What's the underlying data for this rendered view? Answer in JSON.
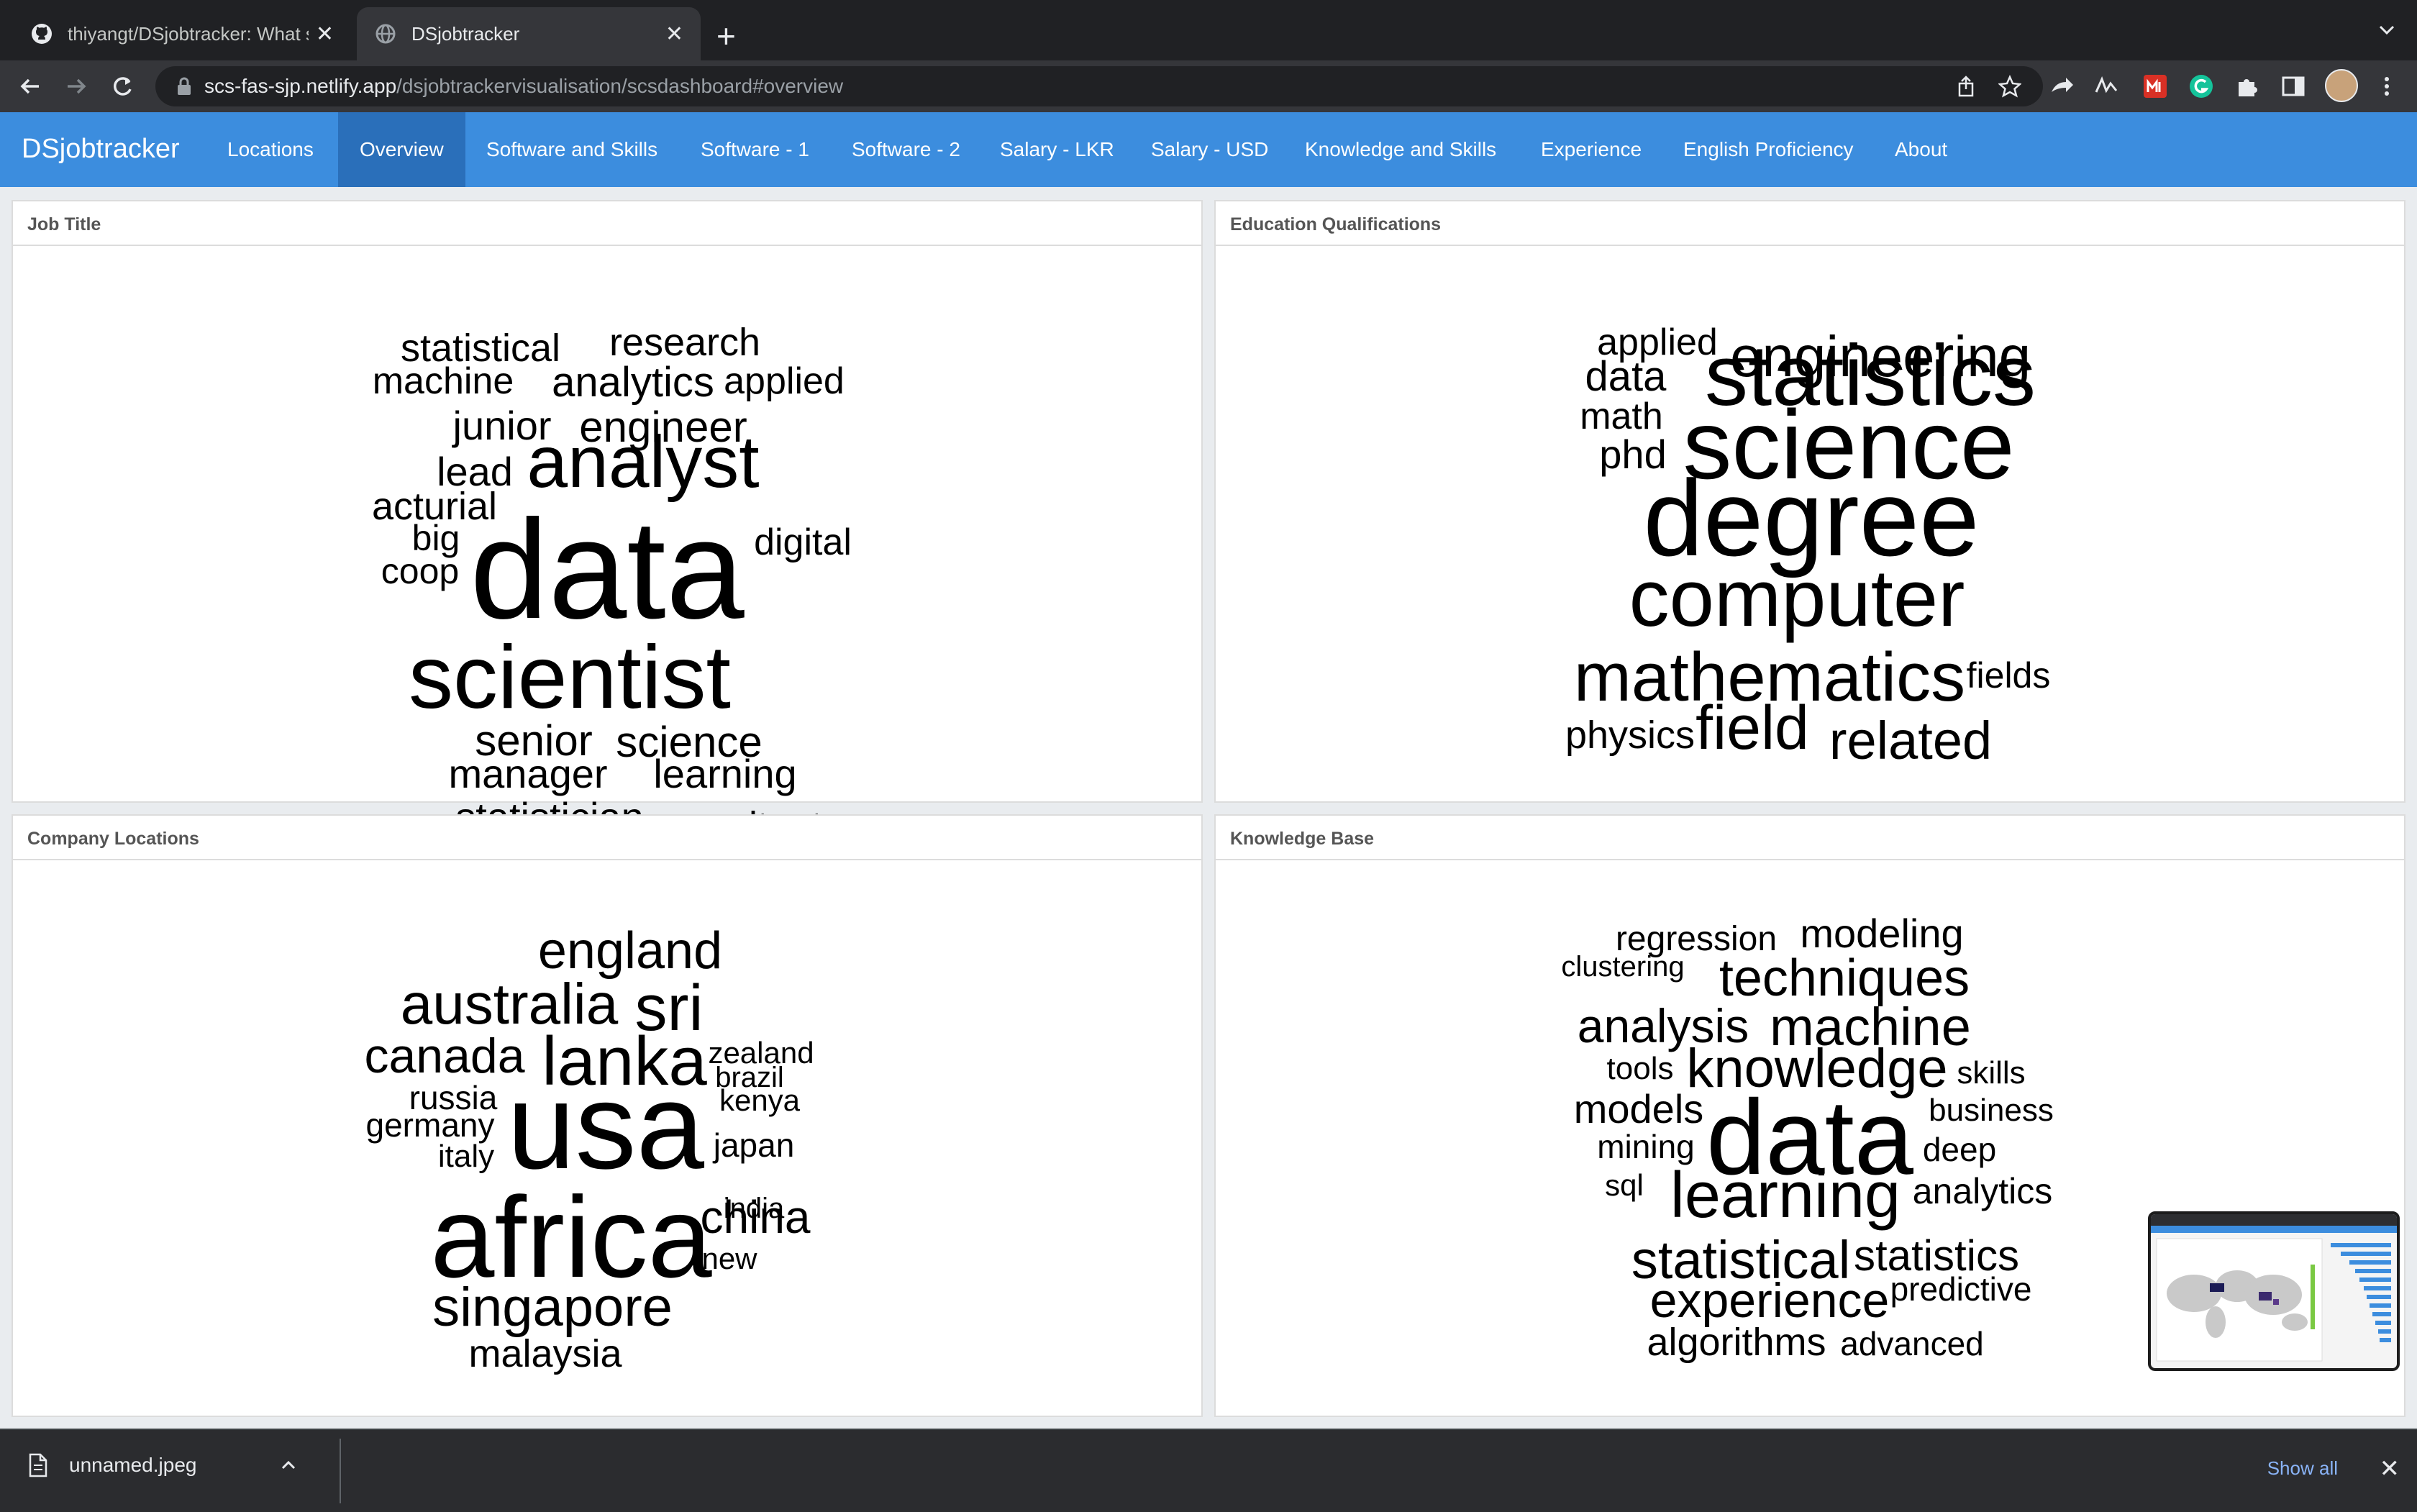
{
  "browser": {
    "tabs": [
      {
        "title": "thiyangt/DSjobtracker: What sk",
        "icon": "github-icon",
        "active": false
      },
      {
        "title": "DSjobtracker",
        "icon": "globe-icon",
        "active": true
      }
    ],
    "url_host": "scs-fas-sjp.netlify.app",
    "url_path": "/dsjobtrackervisualisation/scsdashboard#overview"
  },
  "app": {
    "brand": "DSjobtracker",
    "nav": [
      {
        "label": "Locations",
        "active": false
      },
      {
        "label": "Overview",
        "active": true
      },
      {
        "label": "Software and Skills",
        "active": false
      },
      {
        "label": "Software - 1",
        "active": false
      },
      {
        "label": "Software - 2",
        "active": false
      },
      {
        "label": "Salary - LKR",
        "active": false
      },
      {
        "label": "Salary - USD",
        "active": false
      },
      {
        "label": "Knowledge and Skills",
        "active": false
      },
      {
        "label": "Experience",
        "active": false
      },
      {
        "label": "English Proficiency",
        "active": false
      },
      {
        "label": "About",
        "active": false
      }
    ]
  },
  "panels": {
    "job_title": "Job Title",
    "education": "Education Qualifications",
    "company_locations": "Company Locations",
    "knowledge_base": "Knowledge Base"
  },
  "clouds": {
    "job_title": [
      "statistical",
      "research",
      "machine",
      "analytics",
      "applied",
      "junior",
      "engineer",
      "lead",
      "analyst",
      "acturial",
      "big",
      "digital",
      "coop",
      "data",
      "scientist",
      "senior",
      "science",
      "manager",
      "learning",
      "statistician",
      "consultant"
    ],
    "education": [
      "applied",
      "engineering",
      "data",
      "statistics",
      "math",
      "phd",
      "science",
      "degree",
      "computer",
      "mathematics",
      "fields",
      "physics",
      "field",
      "related"
    ],
    "company_locations": [
      "england",
      "australia",
      "sri",
      "canada",
      "lanka",
      "zealand",
      "brazil",
      "russia",
      "kenya",
      "germany",
      "usa",
      "italy",
      "japan",
      "africa",
      "india",
      "china",
      "new",
      "singapore",
      "malaysia"
    ],
    "knowledge_base": [
      "regression",
      "modeling",
      "clustering",
      "techniques",
      "analysis",
      "machine",
      "tools",
      "knowledge",
      "skills",
      "models",
      "data",
      "business",
      "mining",
      "deep",
      "sql",
      "learning",
      "analytics",
      "statistical",
      "statistics",
      "predictive",
      "experience",
      "algorithms",
      "advanced"
    ]
  },
  "download": {
    "file": "unnamed.jpeg",
    "show_all": "Show all"
  },
  "colors": {
    "navbar": "#3c8dde",
    "navbar_active": "#2a6fba",
    "chrome_dark": "#202124"
  }
}
